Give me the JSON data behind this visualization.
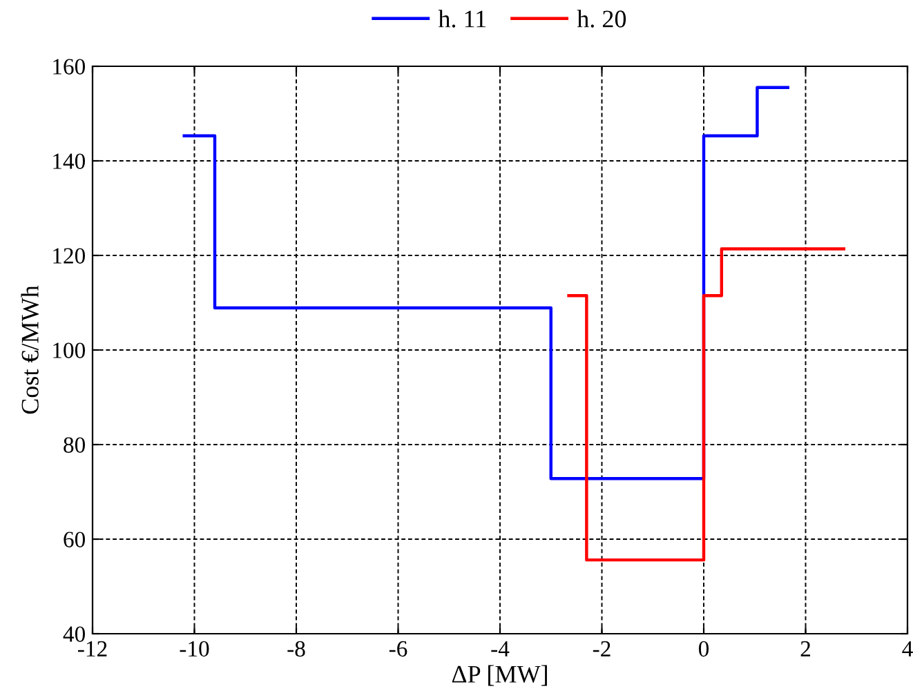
{
  "chart_data": {
    "type": "step",
    "xlabel": "ΔP [MW]",
    "ylabel": "Cost €/MWh",
    "xlim": [
      -12,
      4
    ],
    "xticks": [
      -12,
      -10,
      -8,
      -6,
      -4,
      -2,
      0,
      2,
      4
    ],
    "ylim": [
      40,
      160
    ],
    "yticks": [
      40,
      60,
      80,
      100,
      120,
      140,
      160
    ],
    "grid": true,
    "legend": "top",
    "line_style": "solid",
    "marker": "none",
    "series": [
      {
        "name": "h. 11",
        "color": "#0000ff",
        "x": [
          -10.2,
          -9.6,
          -3.0,
          0,
          1.05,
          1.65
        ],
        "values": [
          145.3,
          108.9,
          72.8,
          145.3,
          155.5,
          155.5
        ]
      },
      {
        "name": "h. 20",
        "color": "#ff0000",
        "x": [
          -2.65,
          -2.3,
          0,
          0.35,
          2.75
        ],
        "values": [
          111.5,
          55.6,
          111.5,
          121.4,
          121.4
        ]
      }
    ]
  }
}
